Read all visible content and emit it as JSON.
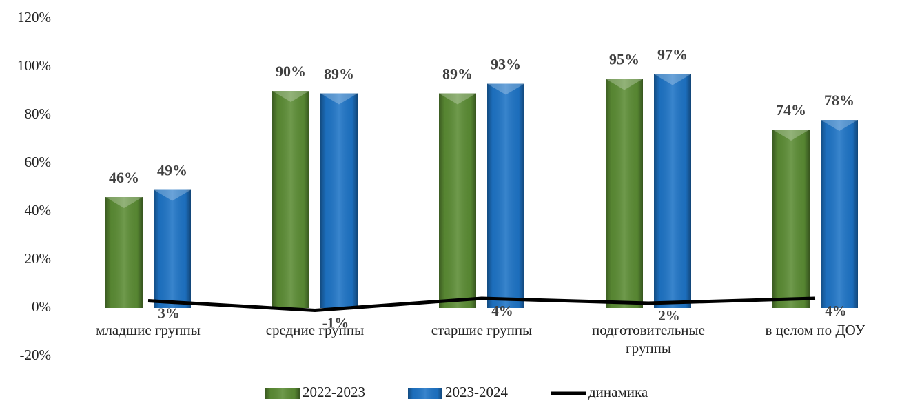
{
  "chart_data": {
    "type": "bar",
    "categories": [
      "младшие группы",
      "средние группы",
      "старшие группы",
      "подготовительные группы",
      "в целом по ДОУ"
    ],
    "series": [
      {
        "name": "2022-2023",
        "color": "#5b8c34",
        "values": [
          46,
          90,
          89,
          95,
          74
        ],
        "value_labels": [
          "46%",
          "90%",
          "89%",
          "95%",
          "74%"
        ]
      },
      {
        "name": "2023-2024",
        "color": "#1e74c6",
        "values": [
          49,
          89,
          93,
          97,
          78
        ],
        "value_labels": [
          "49%",
          "89%",
          "93%",
          "97%",
          "78%"
        ]
      },
      {
        "name": "динамика",
        "type": "line",
        "color": "#000000",
        "values": [
          3,
          -1,
          4,
          2,
          4
        ],
        "value_labels": [
          "3%",
          "-1%",
          "4%",
          "2%",
          "4%"
        ]
      }
    ],
    "ylim": [
      -20,
      120
    ],
    "yticks": [
      {
        "value": -20,
        "label": "-20%"
      },
      {
        "value": 0,
        "label": "0%"
      },
      {
        "value": 20,
        "label": "20%"
      },
      {
        "value": 40,
        "label": "40%"
      },
      {
        "value": 60,
        "label": "60%"
      },
      {
        "value": 80,
        "label": "80%"
      },
      {
        "value": 100,
        "label": "100%"
      },
      {
        "value": 120,
        "label": "120%"
      }
    ],
    "grid": false,
    "legend": "bottom"
  }
}
